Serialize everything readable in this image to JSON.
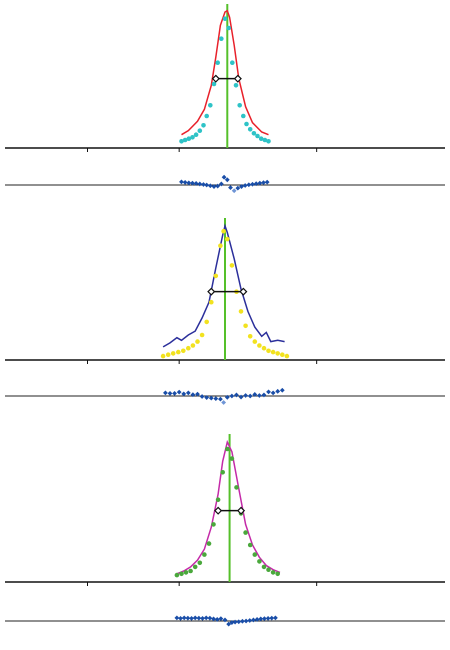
{
  "colors": {
    "background": "#ffffff",
    "axis": "#111111",
    "residual_baseline": "#222222",
    "center_line": "#55c02a",
    "fwhm_marker": "#111111",
    "residual_points": "#1a4ea8",
    "residual_points_light": "#6f95d6"
  },
  "chart_data": [
    {
      "type": "scatter",
      "title": "",
      "xlabel": "",
      "ylabel": "",
      "grid": false,
      "legend": "none",
      "ticks": {
        "x": [
          -3,
          -1,
          2
        ],
        "labels_visible": false
      },
      "xlim": [
        -4.8,
        4.8
      ],
      "ylim": [
        -0.02,
        1.03
      ],
      "center": 0.05,
      "fwhm": [
        -0.2,
        0.28
      ],
      "fwhm_level": 0.5,
      "series": [
        {
          "kind": "fit-line",
          "color": "#e8212b",
          "x": [
            -0.95,
            -0.8,
            -0.6,
            -0.45,
            -0.3,
            -0.2,
            -0.1,
            0,
            0.05,
            0.1,
            0.2,
            0.3,
            0.45,
            0.6,
            0.8,
            0.95
          ],
          "y": [
            0.08,
            0.11,
            0.18,
            0.27,
            0.45,
            0.66,
            0.9,
            1.0,
            1.01,
            0.96,
            0.75,
            0.5,
            0.29,
            0.17,
            0.1,
            0.08
          ]
        },
        {
          "kind": "measured-points",
          "color": "#2ec3c7",
          "x": [
            -0.95,
            -0.87,
            -0.79,
            -0.71,
            -0.63,
            -0.55,
            -0.47,
            -0.4,
            -0.32,
            -0.24,
            -0.16,
            -0.08,
            0,
            0.08,
            0.16,
            0.24,
            0.32,
            0.4,
            0.47,
            0.55,
            0.63,
            0.71,
            0.79,
            0.87,
            0.95
          ],
          "y": [
            0.03,
            0.04,
            0.05,
            0.06,
            0.08,
            0.11,
            0.15,
            0.22,
            0.3,
            0.46,
            0.62,
            0.8,
            0.95,
            0.88,
            0.62,
            0.45,
            0.3,
            0.22,
            0.16,
            0.12,
            0.09,
            0.07,
            0.05,
            0.04,
            0.03
          ]
        }
      ],
      "residuals": {
        "ylim": [
          -0.05,
          0.05
        ],
        "x": [
          -0.95,
          -0.87,
          -0.79,
          -0.71,
          -0.63,
          -0.55,
          -0.47,
          -0.4,
          -0.32,
          -0.24,
          -0.16,
          -0.08,
          -0.02,
          0.05,
          0.12,
          0.2,
          0.28,
          0.36,
          0.44,
          0.52,
          0.6,
          0.68,
          0.76,
          0.84,
          0.92
        ],
        "values": [
          0.012,
          0.01,
          0.008,
          0.007,
          0.006,
          0.004,
          0.002,
          0.0,
          -0.003,
          -0.006,
          -0.004,
          0.004,
          0.03,
          0.02,
          -0.01,
          -0.022,
          -0.012,
          -0.006,
          -0.002,
          0.001,
          0.003,
          0.005,
          0.007,
          0.009,
          0.011
        ]
      }
    },
    {
      "type": "scatter",
      "title": "",
      "xlabel": "",
      "ylabel": "",
      "grid": false,
      "legend": "none",
      "ticks": {
        "x": [
          -3,
          -1,
          2
        ],
        "labels_visible": false
      },
      "xlim": [
        -4.8,
        4.8
      ],
      "ylim": [
        -0.02,
        1.03
      ],
      "center": 0.0,
      "fwhm": [
        -0.3,
        0.4
      ],
      "fwhm_level": 0.5,
      "series": [
        {
          "kind": "fit-line",
          "color": "#2b2f9b",
          "x": [
            -1.35,
            -1.2,
            -1.05,
            -0.95,
            -0.8,
            -0.65,
            -0.5,
            -0.35,
            -0.2,
            -0.05,
            0,
            0.05,
            0.2,
            0.35,
            0.5,
            0.65,
            0.8,
            0.9,
            1.0,
            1.15,
            1.3
          ],
          "y": [
            0.08,
            0.11,
            0.15,
            0.13,
            0.17,
            0.2,
            0.3,
            0.42,
            0.68,
            0.93,
            1.0,
            0.95,
            0.75,
            0.52,
            0.35,
            0.23,
            0.16,
            0.19,
            0.12,
            0.13,
            0.12
          ]
        },
        {
          "kind": "measured-points",
          "color": "#f2e21f",
          "x": [
            -1.35,
            -1.24,
            -1.13,
            -1.02,
            -0.91,
            -0.8,
            -0.7,
            -0.6,
            -0.5,
            -0.4,
            -0.3,
            -0.2,
            -0.1,
            -0.03,
            0.05,
            0.15,
            0.25,
            0.35,
            0.45,
            0.55,
            0.65,
            0.75,
            0.85,
            0.95,
            1.05,
            1.15,
            1.25,
            1.35
          ],
          "y": [
            0.01,
            0.02,
            0.03,
            0.04,
            0.05,
            0.07,
            0.09,
            0.12,
            0.17,
            0.27,
            0.42,
            0.62,
            0.85,
            0.96,
            0.9,
            0.7,
            0.5,
            0.35,
            0.24,
            0.16,
            0.12,
            0.09,
            0.07,
            0.05,
            0.04,
            0.03,
            0.02,
            0.01
          ]
        }
      ],
      "residuals": {
        "ylim": [
          -0.05,
          0.05
        ],
        "x": [
          -1.3,
          -1.2,
          -1.1,
          -1.0,
          -0.9,
          -0.8,
          -0.7,
          -0.6,
          -0.5,
          -0.4,
          -0.3,
          -0.2,
          -0.1,
          -0.03,
          0.05,
          0.15,
          0.25,
          0.35,
          0.45,
          0.55,
          0.65,
          0.75,
          0.85,
          0.95,
          1.05,
          1.15,
          1.25
        ],
        "values": [
          0.012,
          0.01,
          0.01,
          0.015,
          0.008,
          0.012,
          0.005,
          0.007,
          -0.002,
          -0.006,
          -0.008,
          -0.01,
          -0.012,
          -0.025,
          -0.005,
          0.0,
          0.004,
          -0.004,
          0.002,
          0.0,
          0.006,
          0.002,
          0.004,
          0.016,
          0.012,
          0.018,
          0.022
        ]
      }
    },
    {
      "type": "scatter",
      "title": "",
      "xlabel": "",
      "ylabel": "",
      "grid": false,
      "legend": "none",
      "ticks": {
        "x": [
          -3,
          -1,
          2
        ],
        "labels_visible": false
      },
      "xlim": [
        -4.8,
        4.8
      ],
      "ylim": [
        -0.02,
        1.03
      ],
      "center": 0.1,
      "fwhm": [
        -0.15,
        0.35
      ],
      "fwhm_level": 0.5,
      "series": [
        {
          "kind": "fit-line",
          "color": "#c42aa8",
          "x": [
            -1.05,
            -0.9,
            -0.75,
            -0.6,
            -0.45,
            -0.3,
            -0.15,
            -0.05,
            0.05,
            0.15,
            0.3,
            0.45,
            0.6,
            0.75,
            0.9,
            1.05,
            1.2
          ],
          "y": [
            0.04,
            0.06,
            0.09,
            0.14,
            0.22,
            0.38,
            0.62,
            0.86,
            1.0,
            0.93,
            0.66,
            0.4,
            0.25,
            0.16,
            0.1,
            0.07,
            0.05
          ]
        },
        {
          "kind": "measured-points",
          "color": "#4aa83c",
          "x": [
            -1.05,
            -0.95,
            -0.85,
            -0.75,
            -0.65,
            -0.55,
            -0.45,
            -0.35,
            -0.25,
            -0.15,
            -0.05,
            0.05,
            0.15,
            0.25,
            0.35,
            0.45,
            0.55,
            0.65,
            0.75,
            0.85,
            0.95,
            1.05,
            1.15
          ],
          "y": [
            0.03,
            0.04,
            0.05,
            0.06,
            0.09,
            0.12,
            0.18,
            0.26,
            0.4,
            0.58,
            0.78,
            0.95,
            0.88,
            0.67,
            0.48,
            0.34,
            0.25,
            0.18,
            0.13,
            0.09,
            0.07,
            0.05,
            0.04
          ]
        }
      ],
      "residuals": {
        "ylim": [
          -0.05,
          0.05
        ],
        "x": [
          -1.05,
          -0.97,
          -0.89,
          -0.81,
          -0.73,
          -0.65,
          -0.57,
          -0.49,
          -0.41,
          -0.33,
          -0.25,
          -0.17,
          -0.09,
          0.0,
          0.08,
          0.15,
          0.22,
          0.3,
          0.38,
          0.46,
          0.54,
          0.62,
          0.7,
          0.78,
          0.86,
          0.94,
          1.02,
          1.1
        ],
        "values": [
          0.012,
          0.01,
          0.012,
          0.011,
          0.01,
          0.012,
          0.011,
          0.01,
          0.012,
          0.011,
          0.008,
          0.006,
          0.009,
          0.004,
          -0.012,
          -0.006,
          -0.004,
          -0.003,
          -0.001,
          0.0,
          0.002,
          0.004,
          0.006,
          0.008,
          0.009,
          0.01,
          0.011,
          0.012
        ]
      }
    }
  ]
}
